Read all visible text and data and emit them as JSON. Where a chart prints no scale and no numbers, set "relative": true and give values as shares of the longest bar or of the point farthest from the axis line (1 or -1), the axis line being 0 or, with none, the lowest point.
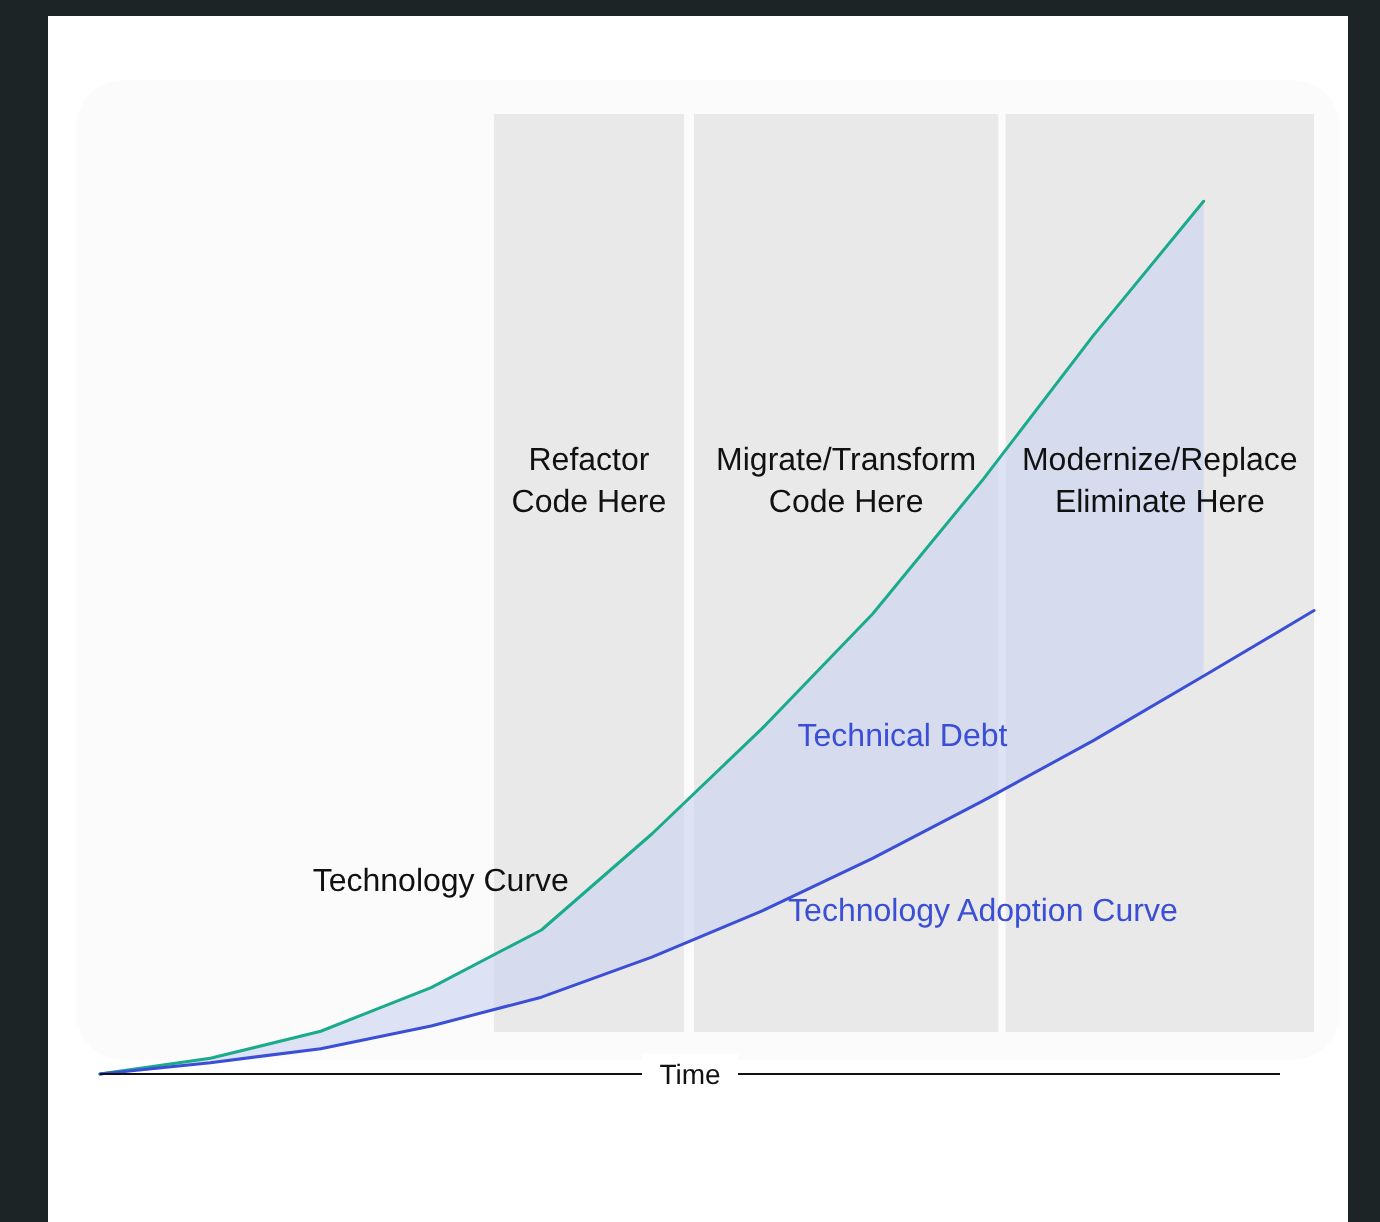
{
  "chart_data": {
    "type": "line",
    "relative": true,
    "xlabel": "Time",
    "marker": "none",
    "line_style": "solid",
    "categories": [
      null,
      null,
      null,
      null,
      null,
      null,
      null,
      null,
      null,
      null,
      null,
      null
    ],
    "series": [
      {
        "name": "Technology Curve",
        "color": "#1aab8b",
        "values": [
          0,
          0.018,
          0.049,
          0.099,
          0.165,
          0.275,
          0.396,
          0.527,
          0.681,
          0.846,
          1,
          null
        ]
      },
      {
        "name": "Technology Adoption Curve",
        "color": "#3b4fd6",
        "values": [
          0,
          0.013,
          0.029,
          0.055,
          0.088,
          0.134,
          0.187,
          0.247,
          0.313,
          0.382,
          0.456,
          0.531
        ]
      }
    ],
    "annotations": [
      "Refactor\nCode Here",
      "Migrate/Transform\nCode Here",
      "Modernize/Replace\nEliminate Here",
      "Technical Debt"
    ]
  }
}
